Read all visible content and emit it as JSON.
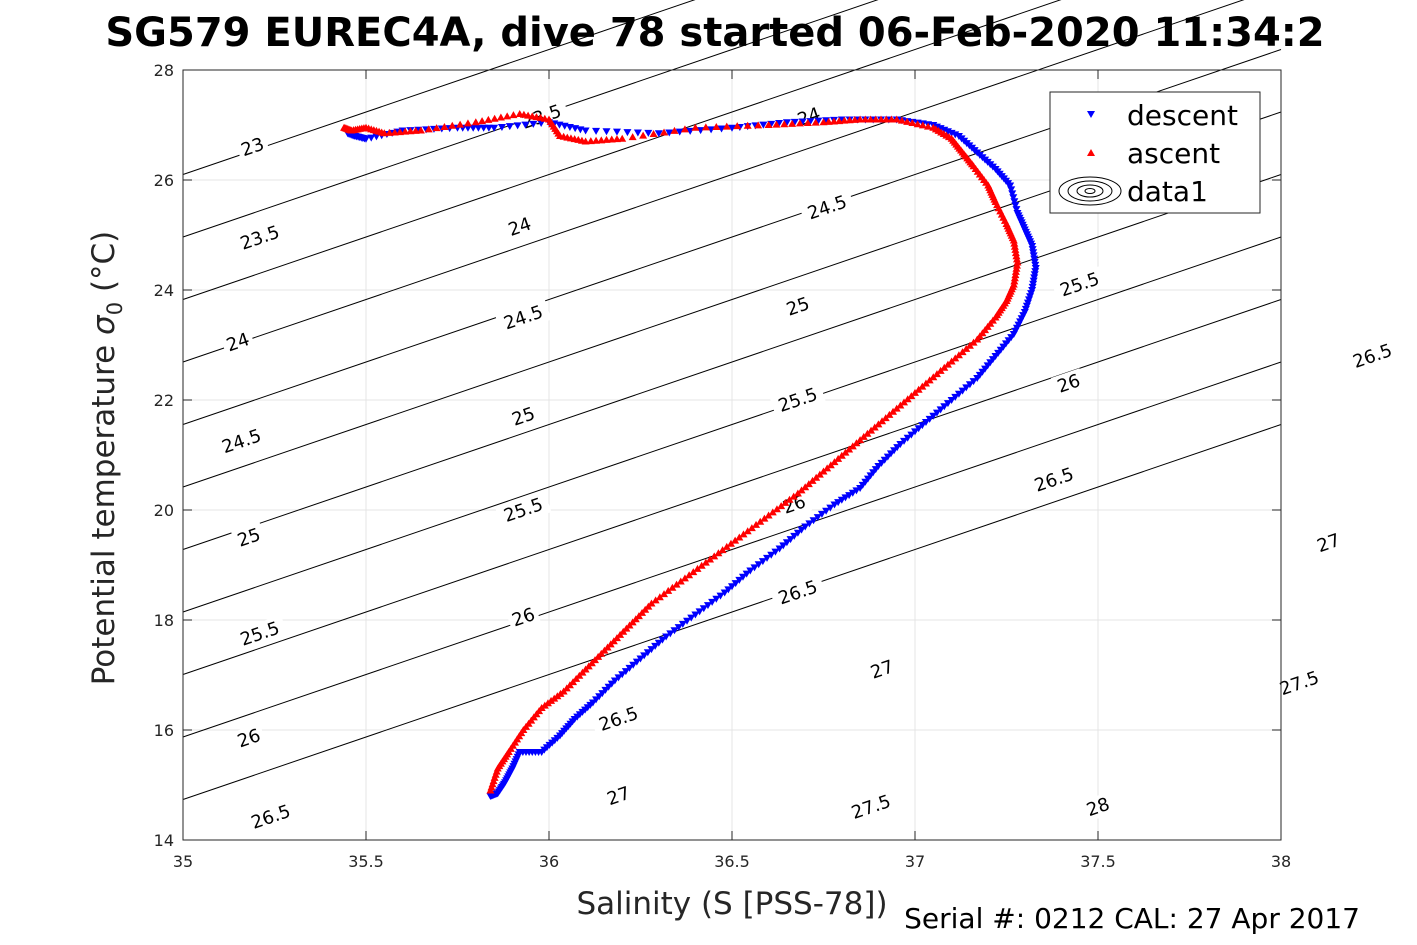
{
  "chart_data": {
    "type": "scatter",
    "title": "SG579 EUREC4A, dive 78 started 06-Feb-2020 11:34:2",
    "xlabel": "Salinity (S [PSS-78])",
    "ylabel_main": "Potential temperature ",
    "ylabel_symbol": "σ",
    "ylabel_sub": "0",
    "ylabel_unit": " (°C)",
    "footer": "Serial #: 0212  CAL: 27 Apr 2017",
    "xlim": [
      35,
      38
    ],
    "ylim": [
      14,
      28
    ],
    "xticks": [
      35,
      35.5,
      36,
      36.5,
      37,
      37.5,
      38
    ],
    "xtick_labels": [
      "35",
      "35.5",
      "36",
      "36.5",
      "37",
      "37.5",
      "38"
    ],
    "yticks": [
      14,
      16,
      18,
      20,
      22,
      24,
      26,
      28
    ],
    "ytick_labels": [
      "14",
      "16",
      "18",
      "20",
      "22",
      "24",
      "26",
      "28"
    ],
    "grid": true,
    "legend": {
      "placement": "top-right",
      "entries": [
        {
          "name": "descent",
          "marker": "triangle-down",
          "color": "#0000ff"
        },
        {
          "name": "ascent",
          "marker": "triangle-up",
          "color": "#ff0000"
        },
        {
          "name": "data1",
          "marker": "contour",
          "color": "#000000"
        }
      ]
    },
    "contours": {
      "levels": [
        23,
        23.5,
        24,
        24.5,
        25,
        25.5,
        26,
        26.5,
        27,
        27.5,
        28
      ],
      "level_labels": [
        "23",
        "23.5",
        "24",
        "24.5",
        "25",
        "25.5",
        "26",
        "26.5",
        "27",
        "27.5",
        "28"
      ],
      "labels": [
        {
          "level": "23",
          "s": 35.19,
          "t": 26.6
        },
        {
          "level": "23.5",
          "s": 35.98,
          "t": 27.15
        },
        {
          "level": "23.5",
          "s": 35.21,
          "t": 24.95
        },
        {
          "level": "24",
          "s": 36.71,
          "t": 27.15
        },
        {
          "level": "24",
          "s": 35.92,
          "t": 25.15
        },
        {
          "level": "24",
          "s": 35.15,
          "t": 23.05
        },
        {
          "level": "24.5",
          "s": 36.76,
          "t": 25.5
        },
        {
          "level": "24.5",
          "s": 35.93,
          "t": 23.5
        },
        {
          "level": "24.5",
          "s": 35.16,
          "t": 21.25
        },
        {
          "level": "25",
          "s": 36.68,
          "t": 23.7
        },
        {
          "level": "25",
          "s": 35.93,
          "t": 21.7
        },
        {
          "level": "25",
          "s": 35.18,
          "t": 19.5
        },
        {
          "level": "25.5",
          "s": 37.45,
          "t": 24.1
        },
        {
          "level": "25.5",
          "s": 36.68,
          "t": 22.0
        },
        {
          "level": "25.5",
          "s": 35.93,
          "t": 20.0
        },
        {
          "level": "25.5",
          "s": 35.21,
          "t": 17.75
        },
        {
          "level": "26",
          "s": 37.42,
          "t": 22.3
        },
        {
          "level": "26",
          "s": 36.67,
          "t": 20.1
        },
        {
          "level": "26",
          "s": 35.93,
          "t": 18.05
        },
        {
          "level": "26",
          "s": 35.18,
          "t": 15.85
        },
        {
          "level": "26.5",
          "s": 38.25,
          "t": 22.8
        },
        {
          "level": "26.5",
          "s": 37.38,
          "t": 20.55
        },
        {
          "level": "26.5",
          "s": 36.68,
          "t": 18.5
        },
        {
          "level": "26.5",
          "s": 35.24,
          "t": 14.42
        },
        {
          "level": "26.5",
          "s": 36.19,
          "t": 16.2
        },
        {
          "level": "27",
          "s": 38.13,
          "t": 19.4
        },
        {
          "level": "27",
          "s": 36.91,
          "t": 17.1
        },
        {
          "level": "27",
          "s": 36.19,
          "t": 14.8
        },
        {
          "level": "27.5",
          "s": 38.05,
          "t": 16.85
        },
        {
          "level": "27.5",
          "s": 36.88,
          "t": 14.6
        },
        {
          "level": "28",
          "s": 37.5,
          "t": 14.6
        }
      ]
    },
    "series": [
      {
        "name": "descent",
        "marker": "triangle-down",
        "color": "#0000ff",
        "x": [
          35.45,
          35.47,
          35.5,
          35.6,
          35.75,
          35.85,
          36.0,
          36.1,
          36.3,
          36.5,
          36.65,
          36.8,
          36.95,
          37.05,
          37.12,
          37.17,
          37.22,
          37.26,
          37.28,
          37.3,
          37.32,
          37.33,
          37.32,
          37.3,
          37.27,
          37.22,
          37.17,
          37.1,
          37.03,
          36.96,
          36.9,
          36.85,
          36.78,
          36.7,
          36.63,
          36.55,
          36.48,
          36.4,
          36.32,
          36.25,
          36.18,
          36.12,
          36.07,
          36.03,
          35.98,
          35.92,
          35.9,
          35.88,
          35.86,
          35.84
        ],
        "y": [
          26.85,
          26.8,
          26.75,
          26.9,
          26.95,
          26.95,
          27.05,
          26.9,
          26.85,
          26.95,
          27.05,
          27.1,
          27.1,
          27.0,
          26.8,
          26.5,
          26.2,
          25.9,
          25.4,
          25.1,
          24.8,
          24.4,
          24.0,
          23.6,
          23.2,
          22.8,
          22.4,
          22.0,
          21.6,
          21.2,
          20.8,
          20.4,
          20.1,
          19.7,
          19.3,
          18.9,
          18.5,
          18.1,
          17.7,
          17.3,
          16.9,
          16.5,
          16.2,
          15.9,
          15.6,
          15.6,
          15.3,
          15.05,
          14.85,
          14.8
        ]
      },
      {
        "name": "ascent",
        "marker": "triangle-up",
        "color": "#ff0000",
        "x": [
          35.44,
          35.46,
          35.5,
          35.55,
          35.65,
          35.8,
          35.92,
          36.0,
          36.03,
          36.1,
          36.2,
          36.4,
          36.6,
          36.75,
          36.85,
          36.95,
          37.05,
          37.1,
          37.13,
          37.16,
          37.2,
          37.22,
          37.25,
          37.27,
          37.28,
          37.27,
          37.25,
          37.22,
          37.17,
          37.1,
          37.03,
          36.96,
          36.89,
          36.82,
          36.75,
          36.68,
          36.6,
          36.52,
          36.44,
          36.36,
          36.28,
          36.22,
          36.16,
          36.1,
          36.04,
          35.98,
          35.93,
          35.89,
          35.86,
          35.84
        ],
        "y": [
          26.95,
          26.9,
          26.95,
          26.85,
          26.9,
          27.05,
          27.2,
          27.1,
          26.8,
          26.7,
          26.75,
          26.95,
          27.0,
          27.05,
          27.1,
          27.1,
          26.95,
          26.75,
          26.5,
          26.25,
          25.9,
          25.6,
          25.2,
          24.9,
          24.5,
          24.1,
          23.8,
          23.5,
          23.1,
          22.7,
          22.3,
          21.9,
          21.5,
          21.1,
          20.7,
          20.3,
          19.9,
          19.5,
          19.1,
          18.7,
          18.3,
          17.9,
          17.5,
          17.1,
          16.7,
          16.4,
          16.0,
          15.6,
          15.3,
          14.9
        ]
      }
    ]
  }
}
